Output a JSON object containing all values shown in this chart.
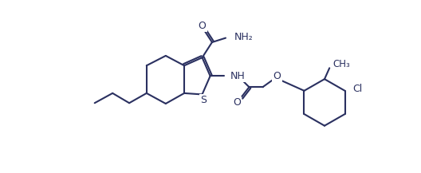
{
  "bg_color": "#ffffff",
  "line_color": "#2a3060",
  "line_width": 1.5,
  "figsize": [
    5.28,
    2.17
  ],
  "dpi": 100,
  "S_label": "S",
  "O_label": "O",
  "NH_label": "NH",
  "NH2_label": "NH₂",
  "Cl_label": "Cl",
  "CH3_label": "CH₃"
}
